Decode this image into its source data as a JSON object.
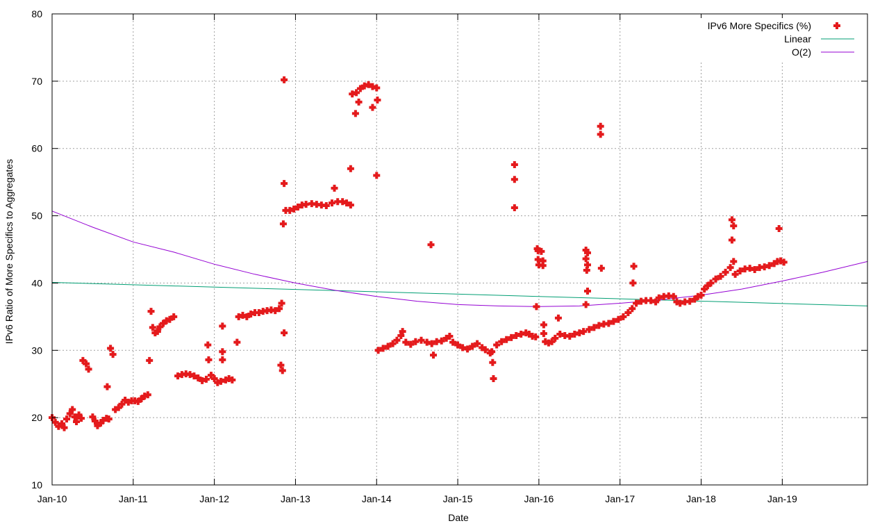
{
  "chart_data": {
    "type": "scatter",
    "xlabel": "Date",
    "ylabel": "IPv6 Ratio of More Specifics to Aggregates",
    "xlim": [
      2010.0,
      2020.05
    ],
    "ylim": [
      10,
      80
    ],
    "x_ticks": [
      {
        "x": 2010,
        "label": "Jan-10"
      },
      {
        "x": 2011,
        "label": "Jan-11"
      },
      {
        "x": 2012,
        "label": "Jan-12"
      },
      {
        "x": 2013,
        "label": "Jan-13"
      },
      {
        "x": 2014,
        "label": "Jan-14"
      },
      {
        "x": 2015,
        "label": "Jan-15"
      },
      {
        "x": 2016,
        "label": "Jan-16"
      },
      {
        "x": 2017,
        "label": "Jan-17"
      },
      {
        "x": 2018,
        "label": "Jan-18"
      },
      {
        "x": 2019,
        "label": "Jan-19"
      }
    ],
    "y_ticks": [
      10,
      20,
      30,
      40,
      50,
      60,
      70,
      80
    ],
    "grid": true,
    "legend_position": "top-right",
    "colors": {
      "points": "#e41a1c",
      "linear": "#009e73",
      "quadratic": "#9400d3"
    },
    "series": [
      {
        "name": "IPv6 More Specifics (%)",
        "kind": "points",
        "points": [
          [
            2010.0,
            20.0
          ],
          [
            2010.04,
            19.3
          ],
          [
            2010.08,
            18.7
          ],
          [
            2010.12,
            19.1
          ],
          [
            2010.15,
            18.5
          ],
          [
            2010.18,
            19.8
          ],
          [
            2010.22,
            20.6
          ],
          [
            2010.25,
            21.2
          ],
          [
            2010.28,
            20.1
          ],
          [
            2010.3,
            19.4
          ],
          [
            2010.33,
            20.4
          ],
          [
            2010.36,
            19.9
          ],
          [
            2010.38,
            28.5
          ],
          [
            2010.42,
            28.0
          ],
          [
            2010.45,
            27.2
          ],
          [
            2010.5,
            20.1
          ],
          [
            2010.53,
            19.5
          ],
          [
            2010.56,
            18.8
          ],
          [
            2010.6,
            19.2
          ],
          [
            2010.63,
            19.6
          ],
          [
            2010.67,
            19.9
          ],
          [
            2010.7,
            19.8
          ],
          [
            2010.68,
            24.6
          ],
          [
            2010.72,
            30.3
          ],
          [
            2010.75,
            29.4
          ],
          [
            2010.78,
            21.2
          ],
          [
            2010.82,
            21.5
          ],
          [
            2010.86,
            22.0
          ],
          [
            2010.9,
            22.6
          ],
          [
            2010.94,
            22.3
          ],
          [
            2010.98,
            22.5
          ],
          [
            2011.02,
            22.5
          ],
          [
            2011.06,
            22.4
          ],
          [
            2011.1,
            22.8
          ],
          [
            2011.14,
            23.2
          ],
          [
            2011.18,
            23.4
          ],
          [
            2011.2,
            28.5
          ],
          [
            2011.22,
            35.8
          ],
          [
            2011.24,
            33.4
          ],
          [
            2011.27,
            32.6
          ],
          [
            2011.3,
            32.8
          ],
          [
            2011.33,
            33.5
          ],
          [
            2011.37,
            34.0
          ],
          [
            2011.41,
            34.4
          ],
          [
            2011.45,
            34.6
          ],
          [
            2011.5,
            35.0
          ],
          [
            2011.55,
            26.2
          ],
          [
            2011.6,
            26.4
          ],
          [
            2011.65,
            26.5
          ],
          [
            2011.7,
            26.4
          ],
          [
            2011.75,
            26.2
          ],
          [
            2011.8,
            25.9
          ],
          [
            2011.85,
            25.5
          ],
          [
            2011.9,
            25.7
          ],
          [
            2011.92,
            30.8
          ],
          [
            2011.93,
            28.6
          ],
          [
            2011.96,
            26.3
          ],
          [
            2012.0,
            25.8
          ],
          [
            2012.04,
            25.2
          ],
          [
            2012.08,
            25.4
          ],
          [
            2012.1,
            33.6
          ],
          [
            2012.1,
            29.8
          ],
          [
            2012.1,
            28.6
          ],
          [
            2012.14,
            25.6
          ],
          [
            2012.18,
            25.8
          ],
          [
            2012.22,
            25.6
          ],
          [
            2012.28,
            31.2
          ],
          [
            2012.3,
            35.0
          ],
          [
            2012.35,
            35.2
          ],
          [
            2012.4,
            35.0
          ],
          [
            2012.45,
            35.4
          ],
          [
            2012.5,
            35.6
          ],
          [
            2012.55,
            35.6
          ],
          [
            2012.6,
            35.8
          ],
          [
            2012.65,
            35.9
          ],
          [
            2012.7,
            36.0
          ],
          [
            2012.75,
            35.9
          ],
          [
            2012.8,
            36.2
          ],
          [
            2012.83,
            37.0
          ],
          [
            2012.82,
            27.8
          ],
          [
            2012.84,
            27.0
          ],
          [
            2012.86,
            70.2
          ],
          [
            2012.86,
            54.8
          ],
          [
            2012.86,
            32.6
          ],
          [
            2012.85,
            48.8
          ],
          [
            2012.88,
            50.8
          ],
          [
            2012.93,
            50.8
          ],
          [
            2012.98,
            51.0
          ],
          [
            2013.03,
            51.3
          ],
          [
            2013.08,
            51.6
          ],
          [
            2013.13,
            51.7
          ],
          [
            2013.2,
            51.8
          ],
          [
            2013.26,
            51.7
          ],
          [
            2013.32,
            51.6
          ],
          [
            2013.38,
            51.5
          ],
          [
            2013.45,
            51.9
          ],
          [
            2013.48,
            54.1
          ],
          [
            2013.52,
            52.1
          ],
          [
            2013.58,
            52.1
          ],
          [
            2013.63,
            51.9
          ],
          [
            2013.68,
            51.6
          ],
          [
            2013.68,
            57.0
          ],
          [
            2013.7,
            68.1
          ],
          [
            2013.75,
            68.3
          ],
          [
            2013.8,
            68.9
          ],
          [
            2013.85,
            69.3
          ],
          [
            2013.9,
            69.5
          ],
          [
            2013.95,
            69.2
          ],
          [
            2014.0,
            69.0
          ],
          [
            2014.01,
            67.2
          ],
          [
            2014.0,
            56.0
          ],
          [
            2013.95,
            66.1
          ],
          [
            2013.78,
            66.9
          ],
          [
            2013.74,
            65.2
          ],
          [
            2014.02,
            30.0
          ],
          [
            2014.08,
            30.3
          ],
          [
            2014.14,
            30.6
          ],
          [
            2014.2,
            31.0
          ],
          [
            2014.25,
            31.5
          ],
          [
            2014.3,
            32.2
          ],
          [
            2014.32,
            32.8
          ],
          [
            2014.36,
            31.2
          ],
          [
            2014.42,
            30.9
          ],
          [
            2014.48,
            31.3
          ],
          [
            2014.55,
            31.5
          ],
          [
            2014.62,
            31.2
          ],
          [
            2014.68,
            31.0
          ],
          [
            2014.7,
            29.3
          ],
          [
            2014.67,
            45.7
          ],
          [
            2014.74,
            31.3
          ],
          [
            2014.8,
            31.4
          ],
          [
            2014.86,
            31.8
          ],
          [
            2014.9,
            32.1
          ],
          [
            2014.94,
            31.2
          ],
          [
            2015.0,
            30.8
          ],
          [
            2015.06,
            30.4
          ],
          [
            2015.12,
            30.2
          ],
          [
            2015.18,
            30.6
          ],
          [
            2015.24,
            31.0
          ],
          [
            2015.3,
            30.4
          ],
          [
            2015.34,
            30.1
          ],
          [
            2015.4,
            29.6
          ],
          [
            2015.42,
            29.8
          ],
          [
            2015.43,
            28.2
          ],
          [
            2015.44,
            25.8
          ],
          [
            2015.48,
            30.8
          ],
          [
            2015.54,
            31.3
          ],
          [
            2015.6,
            31.6
          ],
          [
            2015.66,
            31.9
          ],
          [
            2015.7,
            57.6
          ],
          [
            2015.7,
            55.4
          ],
          [
            2015.7,
            51.2
          ],
          [
            2015.72,
            32.2
          ],
          [
            2015.78,
            32.4
          ],
          [
            2015.84,
            32.6
          ],
          [
            2015.88,
            32.4
          ],
          [
            2015.92,
            32.1
          ],
          [
            2015.96,
            32.0
          ],
          [
            2015.97,
            36.5
          ],
          [
            2015.98,
            45.1
          ],
          [
            2015.99,
            44.8
          ],
          [
            2015.99,
            43.5
          ],
          [
            2016.0,
            42.7
          ],
          [
            2016.03,
            44.7
          ],
          [
            2016.05,
            43.3
          ],
          [
            2016.05,
            42.6
          ],
          [
            2016.06,
            33.8
          ],
          [
            2016.06,
            32.5
          ],
          [
            2016.08,
            31.3
          ],
          [
            2016.12,
            31.1
          ],
          [
            2016.16,
            31.3
          ],
          [
            2016.2,
            31.8
          ],
          [
            2016.24,
            34.8
          ],
          [
            2016.26,
            32.4
          ],
          [
            2016.32,
            32.2
          ],
          [
            2016.38,
            32.1
          ],
          [
            2016.44,
            32.4
          ],
          [
            2016.5,
            32.6
          ],
          [
            2016.55,
            32.8
          ],
          [
            2016.58,
            44.9
          ],
          [
            2016.6,
            44.5
          ],
          [
            2016.58,
            43.6
          ],
          [
            2016.6,
            42.7
          ],
          [
            2016.59,
            41.9
          ],
          [
            2016.6,
            38.8
          ],
          [
            2016.58,
            36.8
          ],
          [
            2016.62,
            33.1
          ],
          [
            2016.68,
            33.4
          ],
          [
            2016.74,
            33.7
          ],
          [
            2016.8,
            33.9
          ],
          [
            2016.76,
            63.3
          ],
          [
            2016.76,
            62.1
          ],
          [
            2016.77,
            42.2
          ],
          [
            2016.86,
            34.0
          ],
          [
            2016.92,
            34.3
          ],
          [
            2016.98,
            34.6
          ],
          [
            2017.04,
            35.0
          ],
          [
            2017.1,
            35.6
          ],
          [
            2017.15,
            36.2
          ],
          [
            2017.17,
            42.5
          ],
          [
            2017.16,
            40.0
          ],
          [
            2017.2,
            37.0
          ],
          [
            2017.26,
            37.3
          ],
          [
            2017.32,
            37.4
          ],
          [
            2017.38,
            37.4
          ],
          [
            2017.44,
            37.2
          ],
          [
            2017.48,
            37.8
          ],
          [
            2017.54,
            38.0
          ],
          [
            2017.6,
            38.1
          ],
          [
            2017.66,
            38.0
          ],
          [
            2017.7,
            37.2
          ],
          [
            2017.74,
            37.0
          ],
          [
            2017.8,
            37.2
          ],
          [
            2017.86,
            37.3
          ],
          [
            2017.92,
            37.6
          ],
          [
            2017.96,
            38.0
          ],
          [
            2018.0,
            38.2
          ],
          [
            2018.04,
            39.1
          ],
          [
            2018.08,
            39.6
          ],
          [
            2018.12,
            40.0
          ],
          [
            2018.18,
            40.6
          ],
          [
            2018.24,
            41.0
          ],
          [
            2018.3,
            41.6
          ],
          [
            2018.36,
            42.3
          ],
          [
            2018.38,
            49.4
          ],
          [
            2018.4,
            48.5
          ],
          [
            2018.38,
            46.4
          ],
          [
            2018.4,
            43.2
          ],
          [
            2018.42,
            41.3
          ],
          [
            2018.48,
            41.8
          ],
          [
            2018.54,
            42.1
          ],
          [
            2018.6,
            42.2
          ],
          [
            2018.66,
            42.0
          ],
          [
            2018.72,
            42.3
          ],
          [
            2018.78,
            42.4
          ],
          [
            2018.84,
            42.6
          ],
          [
            2018.9,
            42.9
          ],
          [
            2018.94,
            43.2
          ],
          [
            2018.96,
            48.1
          ],
          [
            2018.98,
            43.3
          ],
          [
            2019.02,
            43.1
          ]
        ]
      },
      {
        "name": "Linear",
        "kind": "line",
        "points": [
          [
            2010.0,
            40.1
          ],
          [
            2020.05,
            36.6
          ]
        ]
      },
      {
        "name": "O(2)",
        "kind": "line",
        "points": [
          [
            2010.0,
            50.7
          ],
          [
            2010.5,
            48.3
          ],
          [
            2011.0,
            46.1
          ],
          [
            2011.5,
            44.6
          ],
          [
            2012.0,
            42.8
          ],
          [
            2012.5,
            41.3
          ],
          [
            2013.0,
            40.0
          ],
          [
            2013.5,
            38.9
          ],
          [
            2014.0,
            38.0
          ],
          [
            2014.5,
            37.3
          ],
          [
            2015.0,
            36.8
          ],
          [
            2015.5,
            36.6
          ],
          [
            2016.0,
            36.5
          ],
          [
            2016.5,
            36.6
          ],
          [
            2017.0,
            37.0
          ],
          [
            2017.5,
            37.5
          ],
          [
            2018.0,
            38.2
          ],
          [
            2018.5,
            39.1
          ],
          [
            2019.0,
            40.3
          ],
          [
            2019.5,
            41.6
          ],
          [
            2020.05,
            43.2
          ]
        ]
      }
    ]
  }
}
